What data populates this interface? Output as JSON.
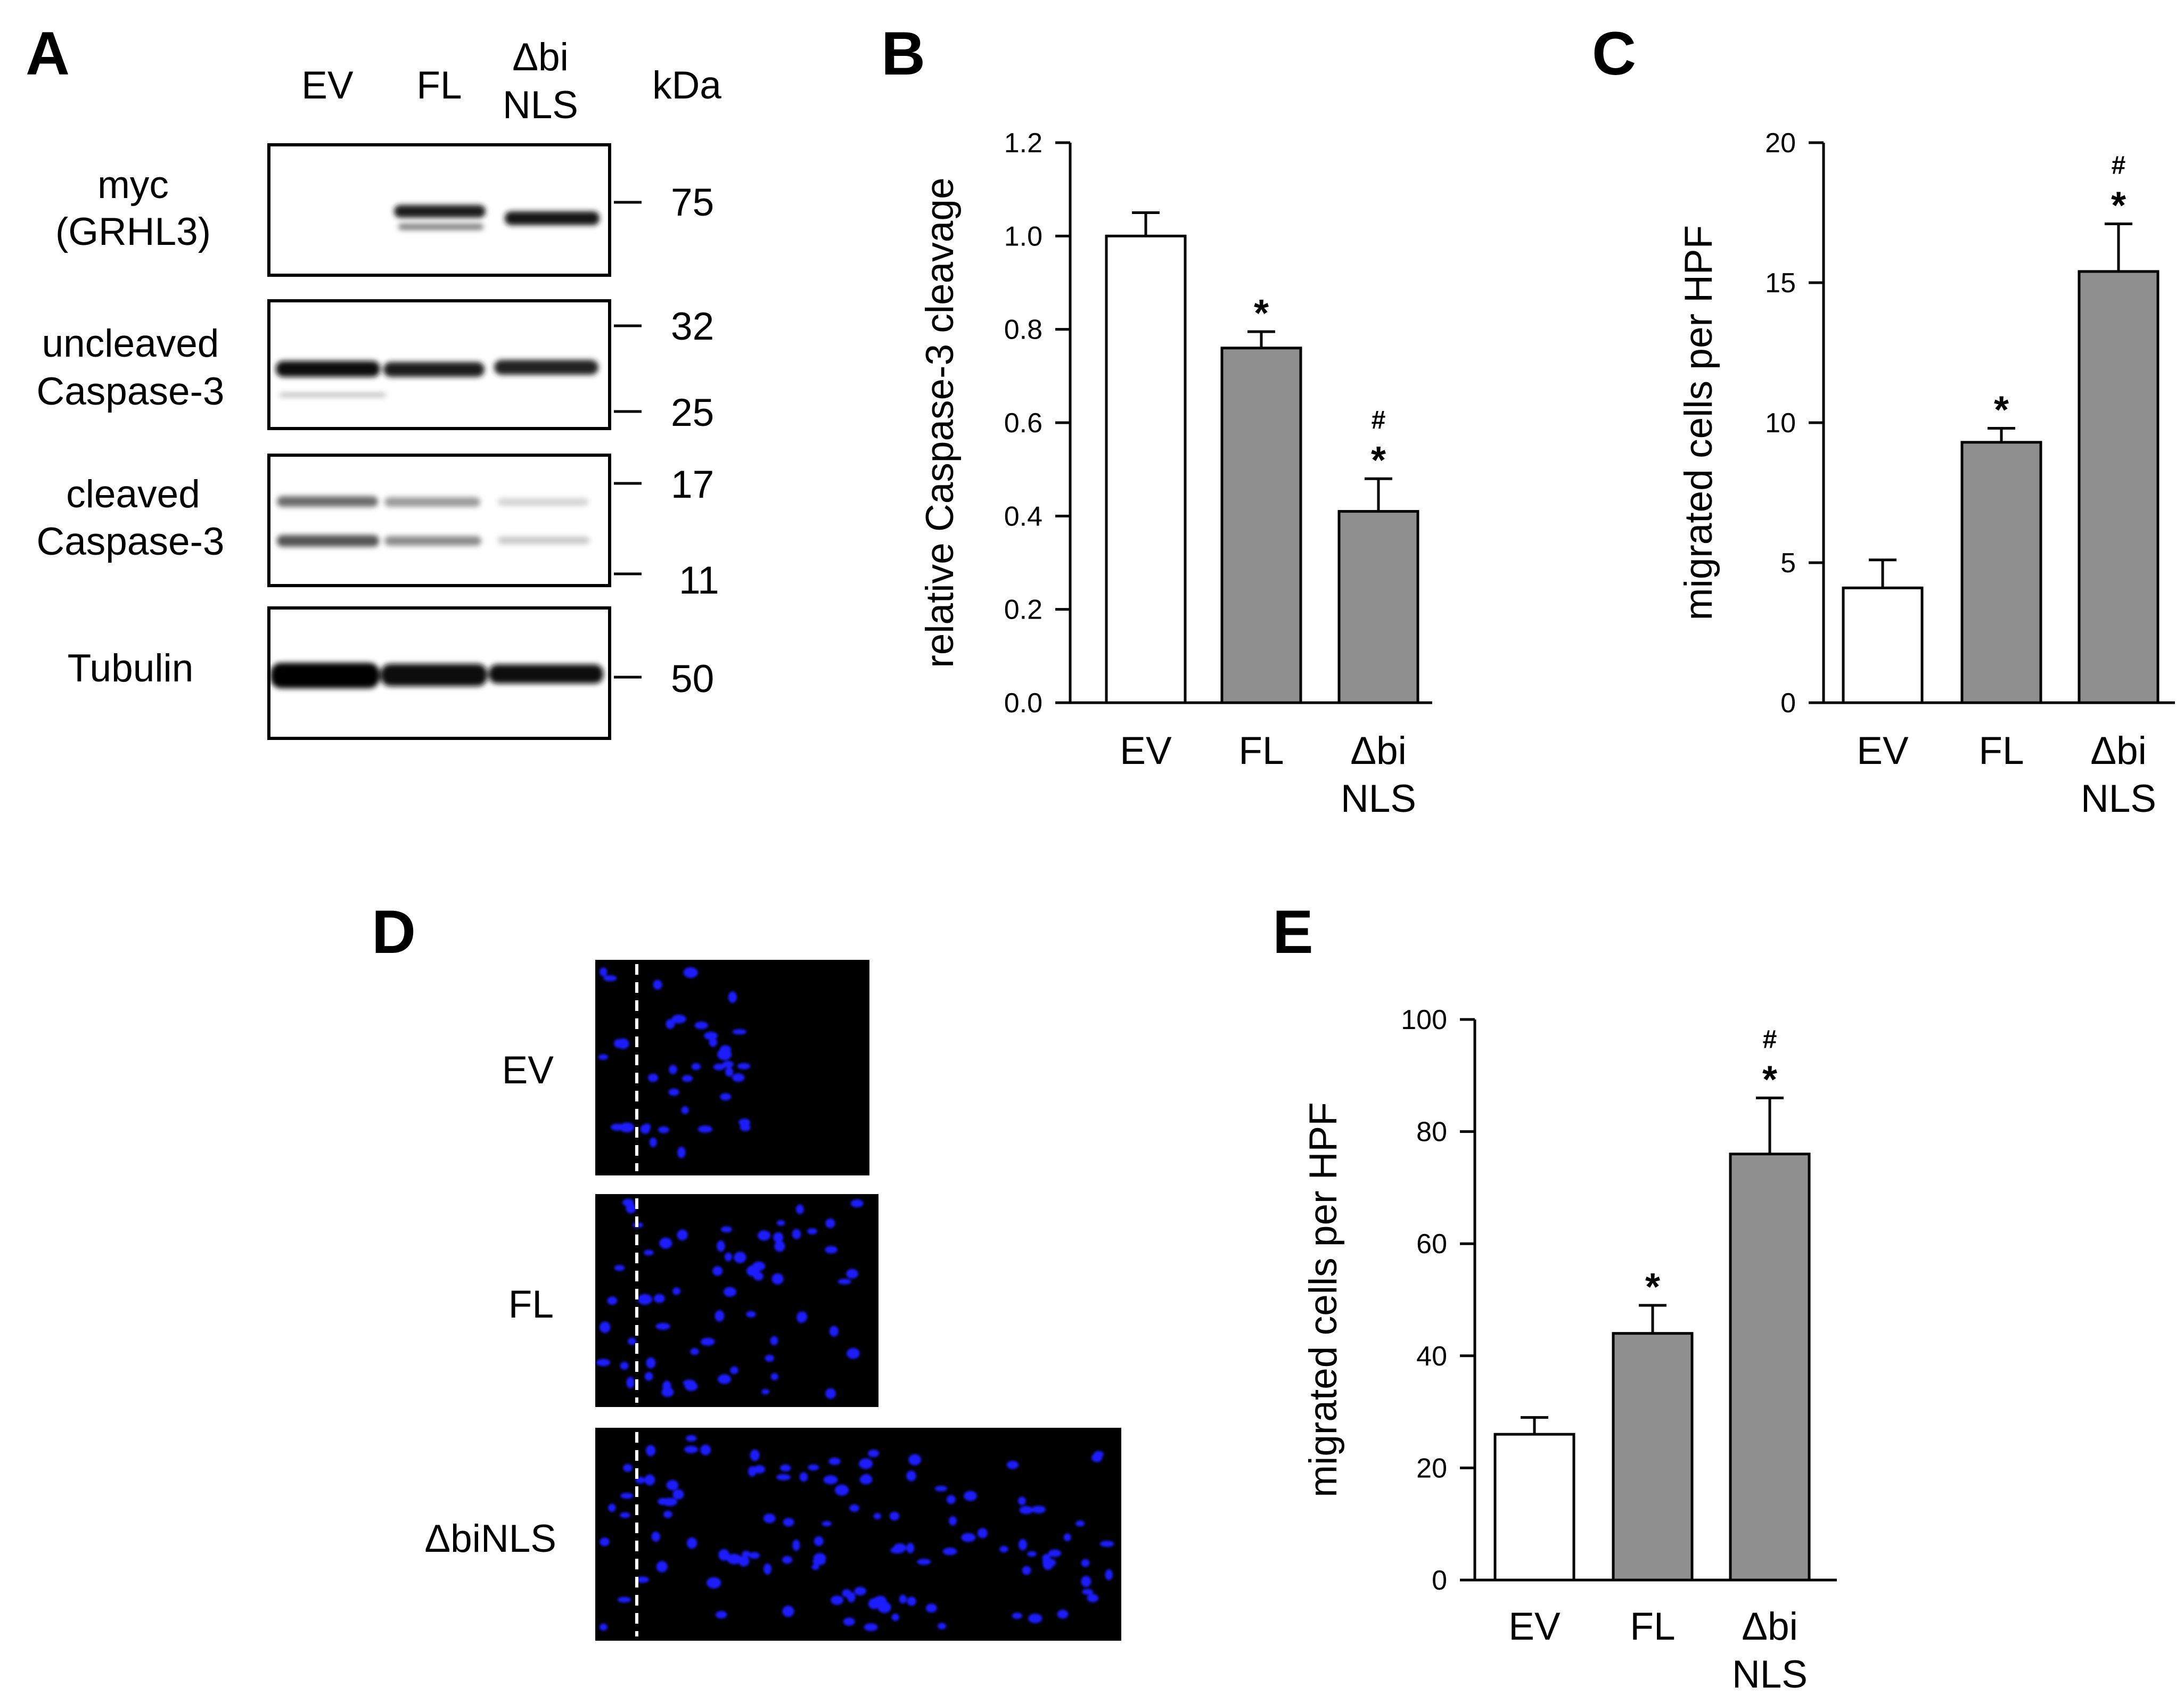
{
  "panels": {
    "A": {
      "letter": "A",
      "lanes": [
        "EV",
        "FL",
        "Δbi",
        "NLS"
      ],
      "kda_label": "kDa",
      "blots": [
        {
          "label_lines": [
            "myc",
            "(GRHL3)"
          ],
          "markers": [
            "75"
          ]
        },
        {
          "label_lines": [
            "uncleaved",
            "Caspase-3"
          ],
          "markers": [
            "32",
            "25"
          ]
        },
        {
          "label_lines": [
            "cleaved",
            "Caspase-3"
          ],
          "markers": [
            "17",
            "11"
          ]
        },
        {
          "label_lines": [
            "Tubulin"
          ],
          "markers": [
            "50"
          ]
        }
      ]
    },
    "B": {
      "letter": "B"
    },
    "C": {
      "letter": "C"
    },
    "D": {
      "letter": "D",
      "rows": [
        "EV",
        "FL",
        "ΔbiNLS"
      ]
    },
    "E": {
      "letter": "E"
    }
  },
  "colors": {
    "open_bar": "#ffffff",
    "filled_bar": "#8f8f8f",
    "nuclei": "#1f1fff",
    "micrograph_bg": "#000000"
  },
  "chart_data": [
    {
      "panel": "B",
      "type": "bar",
      "categories": [
        [
          "EV"
        ],
        [
          "FL"
        ],
        [
          "Δbi",
          "NLS"
        ]
      ],
      "values": [
        1.0,
        0.76,
        0.41
      ],
      "errors": [
        0.05,
        0.035,
        0.07
      ],
      "bar_fill": [
        "open",
        "filled",
        "filled"
      ],
      "significance": [
        [],
        [
          "*"
        ],
        [
          "#",
          "*"
        ]
      ],
      "ylabel": "relative Caspase-3 cleavage",
      "ylim": [
        0,
        1.2
      ],
      "yticks": [
        "0.0",
        "0.2",
        "0.4",
        "0.6",
        "0.8",
        "1.0",
        "1.2"
      ],
      "grid": false
    },
    {
      "panel": "C",
      "type": "bar",
      "categories": [
        [
          "EV"
        ],
        [
          "FL"
        ],
        [
          "Δbi",
          "NLS"
        ]
      ],
      "values": [
        4.1,
        9.3,
        15.4
      ],
      "errors": [
        1.0,
        0.5,
        1.7
      ],
      "bar_fill": [
        "open",
        "filled",
        "filled"
      ],
      "significance": [
        [],
        [
          "*"
        ],
        [
          "#",
          "*"
        ]
      ],
      "ylabel": "migrated cells per HPF",
      "ylim": [
        0,
        20
      ],
      "yticks": [
        "0",
        "5",
        "10",
        "15",
        "20"
      ],
      "grid": false
    },
    {
      "panel": "E",
      "type": "bar",
      "categories": [
        [
          "EV"
        ],
        [
          "FL"
        ],
        [
          "Δbi",
          "NLS"
        ]
      ],
      "values": [
        26,
        44,
        76
      ],
      "errors": [
        3,
        5,
        10
      ],
      "bar_fill": [
        "open",
        "filled",
        "filled"
      ],
      "significance": [
        [],
        [
          "*"
        ],
        [
          "#",
          "*"
        ]
      ],
      "ylabel": "migrated cells per HPF",
      "ylim": [
        0,
        100
      ],
      "yticks": [
        "0",
        "20",
        "40",
        "60",
        "80",
        "100"
      ],
      "grid": false
    }
  ]
}
